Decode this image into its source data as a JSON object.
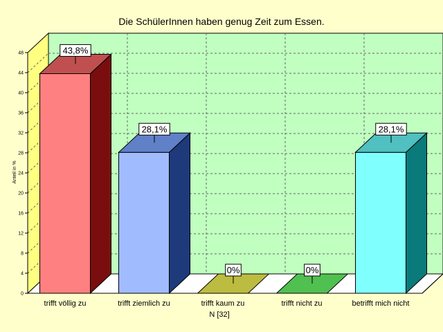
{
  "chart_data": {
    "type": "bar",
    "title": "Die SchülerInnen haben genug Zeit zum Essen.",
    "ylabel": "Anteil in %",
    "xlabel": "",
    "ylim": [
      0,
      48
    ],
    "yticks": [
      "0",
      "4",
      "8",
      "12",
      "16",
      "20",
      "24",
      "28",
      "32",
      "36",
      "40",
      "44",
      "48"
    ],
    "grid": true,
    "three_d": true,
    "categories": [
      "trifft völlig zu",
      "trifft ziemlich zu",
      "trifft kaum zu",
      "trifft nicht zu",
      "betrifft mich nicht"
    ],
    "footnote": "N [32]",
    "values": [
      43.8,
      28.1,
      0,
      0,
      28.1
    ],
    "data_labels": [
      "43,8%",
      "28,1%",
      "0%",
      "0%",
      "28,1%"
    ],
    "colors": [
      {
        "front": "#ff8080",
        "side": "#7a0e0e",
        "top": "#c05050"
      },
      {
        "front": "#a0bcff",
        "side": "#1e3a7a",
        "top": "#6080c8"
      },
      {
        "front": "#e0e060",
        "side": "#6a6a10",
        "top": "#bcbc40"
      },
      {
        "front": "#70dd70",
        "side": "#1a7a1a",
        "top": "#50c050"
      },
      {
        "front": "#80ffff",
        "side": "#0a7a7a",
        "top": "#50c0c0"
      }
    ],
    "plot_background": "#c0ffc0",
    "side_wall_color": "#ffff80",
    "floor_color": "#ffffff",
    "page_background": "#ffffcc"
  }
}
